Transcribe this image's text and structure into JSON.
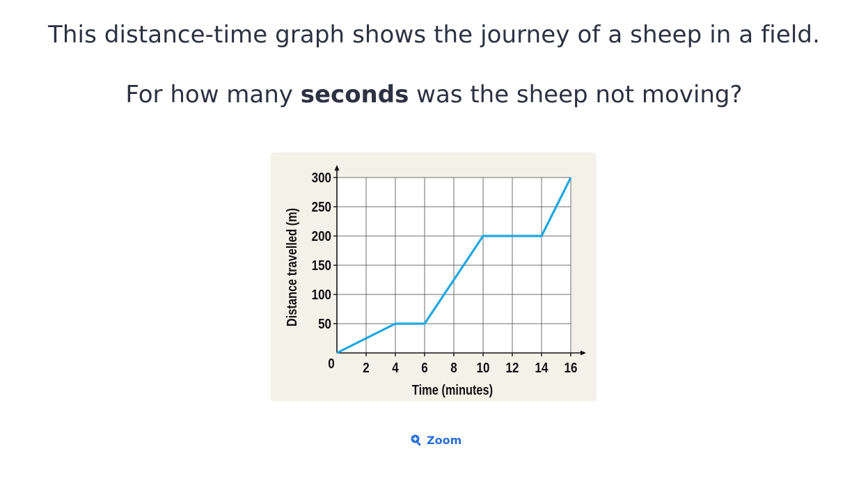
{
  "question": {
    "line1": "This distance-time graph shows the journey of a sheep in a field.",
    "line2_pre": "For how many ",
    "line2_bold": "seconds",
    "line2_post": " was the sheep not moving?"
  },
  "zoom": {
    "label": "Zoom",
    "icon": "zoom-in-icon"
  },
  "chart_data": {
    "type": "line",
    "xlabel": "Time (minutes)",
    "ylabel": "Distance travelled (m)",
    "xlim": [
      0,
      16
    ],
    "ylim": [
      0,
      300
    ],
    "x_ticks": [
      2,
      4,
      6,
      8,
      10,
      12,
      14,
      16
    ],
    "y_ticks": [
      50,
      100,
      150,
      200,
      250,
      300
    ],
    "origin_label": "0",
    "grid": true,
    "x_grid_step": 2,
    "y_grid_step": 50,
    "line_color": "#1fa7e0",
    "series": [
      {
        "x": [
          0,
          4,
          6,
          10,
          14,
          16
        ],
        "y": [
          0,
          50,
          50,
          200,
          200,
          300
        ]
      }
    ]
  }
}
